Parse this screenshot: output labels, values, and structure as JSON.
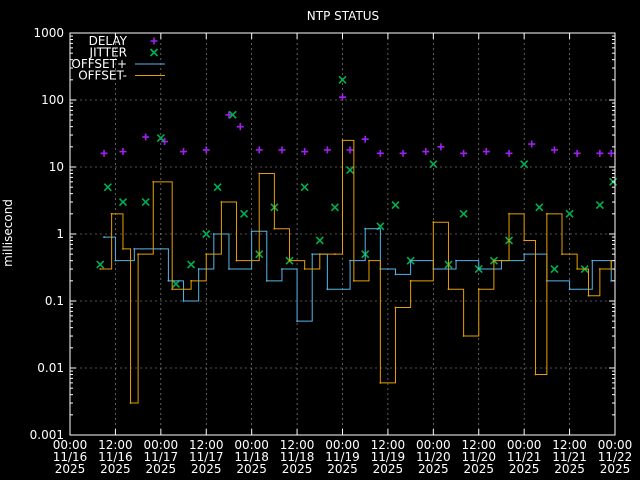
{
  "chart_data": {
    "type": "scatter",
    "title": "NTP STATUS",
    "ylabel": "millisecond",
    "xlabel": "",
    "yscale": "log",
    "ylim": [
      0.001,
      1000
    ],
    "xlim": [
      "2025-11-16 00:00",
      "2025-11-22 00:00"
    ],
    "grid": true,
    "legend_position": "top-left",
    "y_ticks": [
      "0.001",
      "0.01",
      "0.1",
      "1",
      "10",
      "100",
      "1000"
    ],
    "x_ticks": [
      {
        "time": "00:00",
        "date": "11/16",
        "year": "2025"
      },
      {
        "time": "12:00",
        "date": "11/16",
        "year": "2025"
      },
      {
        "time": "00:00",
        "date": "11/17",
        "year": "2025"
      },
      {
        "time": "12:00",
        "date": "11/17",
        "year": "2025"
      },
      {
        "time": "00:00",
        "date": "11/18",
        "year": "2025"
      },
      {
        "time": "12:00",
        "date": "11/18",
        "year": "2025"
      },
      {
        "time": "00:00",
        "date": "11/19",
        "year": "2025"
      },
      {
        "time": "12:00",
        "date": "11/19",
        "year": "2025"
      },
      {
        "time": "00:00",
        "date": "11/20",
        "year": "2025"
      },
      {
        "time": "12:00",
        "date": "11/20",
        "year": "2025"
      },
      {
        "time": "00:00",
        "date": "11/21",
        "year": "2025"
      },
      {
        "time": "12:00",
        "date": "11/21",
        "year": "2025"
      },
      {
        "time": "00:00",
        "date": "11/22",
        "year": "2025"
      }
    ],
    "series": [
      {
        "name": "DELAY",
        "marker": "+",
        "color": "#a020f0",
        "points": [
          [
            "2025-11-16 09:00",
            16
          ],
          [
            "2025-11-16 14:00",
            17
          ],
          [
            "2025-11-16 20:00",
            28
          ],
          [
            "2025-11-17 01:00",
            24
          ],
          [
            "2025-11-17 06:00",
            17
          ],
          [
            "2025-11-17 12:00",
            18
          ],
          [
            "2025-11-17 18:00",
            60
          ],
          [
            "2025-11-17 21:00",
            40
          ],
          [
            "2025-11-18 02:00",
            18
          ],
          [
            "2025-11-18 08:00",
            18
          ],
          [
            "2025-11-18 14:00",
            17
          ],
          [
            "2025-11-18 20:00",
            18
          ],
          [
            "2025-11-19 00:00",
            110
          ],
          [
            "2025-11-19 02:00",
            18
          ],
          [
            "2025-11-19 06:00",
            26
          ],
          [
            "2025-11-19 10:00",
            16
          ],
          [
            "2025-11-19 16:00",
            16
          ],
          [
            "2025-11-19 22:00",
            17
          ],
          [
            "2025-11-20 02:00",
            20
          ],
          [
            "2025-11-20 08:00",
            16
          ],
          [
            "2025-11-20 14:00",
            17
          ],
          [
            "2025-11-20 20:00",
            16
          ],
          [
            "2025-11-21 02:00",
            22
          ],
          [
            "2025-11-21 08:00",
            18
          ],
          [
            "2025-11-21 14:00",
            16
          ],
          [
            "2025-11-21 20:00",
            16
          ],
          [
            "2025-11-21 23:00",
            16
          ]
        ]
      },
      {
        "name": "JITTER",
        "marker": "x",
        "color": "#00b050",
        "points": [
          [
            "2025-11-16 08:00",
            0.35
          ],
          [
            "2025-11-16 10:00",
            5
          ],
          [
            "2025-11-16 14:00",
            3
          ],
          [
            "2025-11-16 20:00",
            3
          ],
          [
            "2025-11-17 00:00",
            27
          ],
          [
            "2025-11-17 04:00",
            0.18
          ],
          [
            "2025-11-17 08:00",
            0.35
          ],
          [
            "2025-11-17 12:00",
            1
          ],
          [
            "2025-11-17 15:00",
            5
          ],
          [
            "2025-11-17 19:00",
            60
          ],
          [
            "2025-11-17 22:00",
            2
          ],
          [
            "2025-11-18 02:00",
            0.5
          ],
          [
            "2025-11-18 06:00",
            2.5
          ],
          [
            "2025-11-18 10:00",
            0.4
          ],
          [
            "2025-11-18 14:00",
            5
          ],
          [
            "2025-11-18 18:00",
            0.8
          ],
          [
            "2025-11-18 22:00",
            2.5
          ],
          [
            "2025-11-19 00:00",
            200
          ],
          [
            "2025-11-19 02:00",
            9
          ],
          [
            "2025-11-19 06:00",
            0.5
          ],
          [
            "2025-11-19 10:00",
            1.3
          ],
          [
            "2025-11-19 14:00",
            2.7
          ],
          [
            "2025-11-19 18:00",
            0.4
          ],
          [
            "2025-11-20 00:00",
            11
          ],
          [
            "2025-11-20 04:00",
            0.35
          ],
          [
            "2025-11-20 08:00",
            2
          ],
          [
            "2025-11-20 12:00",
            0.3
          ],
          [
            "2025-11-20 16:00",
            0.4
          ],
          [
            "2025-11-20 20:00",
            0.8
          ],
          [
            "2025-11-21 00:00",
            11
          ],
          [
            "2025-11-21 04:00",
            2.5
          ],
          [
            "2025-11-21 08:00",
            0.3
          ],
          [
            "2025-11-21 12:00",
            2
          ],
          [
            "2025-11-21 16:00",
            0.3
          ],
          [
            "2025-11-21 20:00",
            2.7
          ],
          [
            "2025-11-21 23:30",
            6
          ]
        ]
      },
      {
        "name": "OFFSET+",
        "style": "line",
        "color": "#56b4e9",
        "points": [
          [
            "2025-11-16 09:00",
            0.9
          ],
          [
            "2025-11-16 12:00",
            0.4
          ],
          [
            "2025-11-16 17:00",
            0.6
          ],
          [
            "2025-11-17 02:00",
            0.2
          ],
          [
            "2025-11-17 06:00",
            0.1
          ],
          [
            "2025-11-17 10:00",
            0.3
          ],
          [
            "2025-11-17 14:00",
            1.0
          ],
          [
            "2025-11-17 18:00",
            0.3
          ],
          [
            "2025-11-18 00:00",
            1.1
          ],
          [
            "2025-11-18 04:00",
            0.2
          ],
          [
            "2025-11-18 08:00",
            0.3
          ],
          [
            "2025-11-18 12:00",
            0.05
          ],
          [
            "2025-11-18 16:00",
            0.5
          ],
          [
            "2025-11-18 20:00",
            0.15
          ],
          [
            "2025-11-19 02:00",
            0.4
          ],
          [
            "2025-11-19 06:00",
            1.2
          ],
          [
            "2025-11-19 10:00",
            0.3
          ],
          [
            "2025-11-19 14:00",
            0.25
          ],
          [
            "2025-11-19 18:00",
            0.4
          ],
          [
            "2025-11-20 00:00",
            0.3
          ],
          [
            "2025-11-20 06:00",
            0.4
          ],
          [
            "2025-11-20 12:00",
            0.3
          ],
          [
            "2025-11-20 18:00",
            0.4
          ],
          [
            "2025-11-21 00:00",
            0.5
          ],
          [
            "2025-11-21 06:00",
            0.2
          ],
          [
            "2025-11-21 12:00",
            0.15
          ],
          [
            "2025-11-21 18:00",
            0.4
          ],
          [
            "2025-11-21 23:00",
            0.2
          ]
        ]
      },
      {
        "name": "OFFSET-",
        "style": "line",
        "color": "#e69f00",
        "points": [
          [
            "2025-11-16 08:00",
            0.3
          ],
          [
            "2025-11-16 11:00",
            2
          ],
          [
            "2025-11-16 14:00",
            0.6
          ],
          [
            "2025-11-16 16:00",
            0.003
          ],
          [
            "2025-11-16 18:00",
            0.5
          ],
          [
            "2025-11-16 22:00",
            6
          ],
          [
            "2025-11-17 03:00",
            0.15
          ],
          [
            "2025-11-17 08:00",
            0.2
          ],
          [
            "2025-11-17 12:00",
            0.5
          ],
          [
            "2025-11-17 16:00",
            3
          ],
          [
            "2025-11-17 20:00",
            0.4
          ],
          [
            "2025-11-18 02:00",
            8
          ],
          [
            "2025-11-18 06:00",
            1.2
          ],
          [
            "2025-11-18 10:00",
            0.4
          ],
          [
            "2025-11-18 14:00",
            0.3
          ],
          [
            "2025-11-18 18:00",
            0.5
          ],
          [
            "2025-11-18 22:00",
            0.5
          ],
          [
            "2025-11-19 00:00",
            25
          ],
          [
            "2025-11-19 03:00",
            0.2
          ],
          [
            "2025-11-19 07:00",
            0.4
          ],
          [
            "2025-11-19 10:00",
            0.006
          ],
          [
            "2025-11-19 14:00",
            0.08
          ],
          [
            "2025-11-19 18:00",
            0.2
          ],
          [
            "2025-11-20 00:00",
            1.5
          ],
          [
            "2025-11-20 04:00",
            0.15
          ],
          [
            "2025-11-20 08:00",
            0.03
          ],
          [
            "2025-11-20 12:00",
            0.15
          ],
          [
            "2025-11-20 16:00",
            0.4
          ],
          [
            "2025-11-20 20:00",
            2
          ],
          [
            "2025-11-21 00:00",
            0.8
          ],
          [
            "2025-11-21 03:00",
            0.008
          ],
          [
            "2025-11-21 06:00",
            2
          ],
          [
            "2025-11-21 10:00",
            0.5
          ],
          [
            "2025-11-21 14:00",
            0.3
          ],
          [
            "2025-11-21 17:00",
            0.12
          ],
          [
            "2025-11-21 20:00",
            0.3
          ],
          [
            "2025-11-21 23:00",
            0.4
          ]
        ]
      }
    ]
  }
}
